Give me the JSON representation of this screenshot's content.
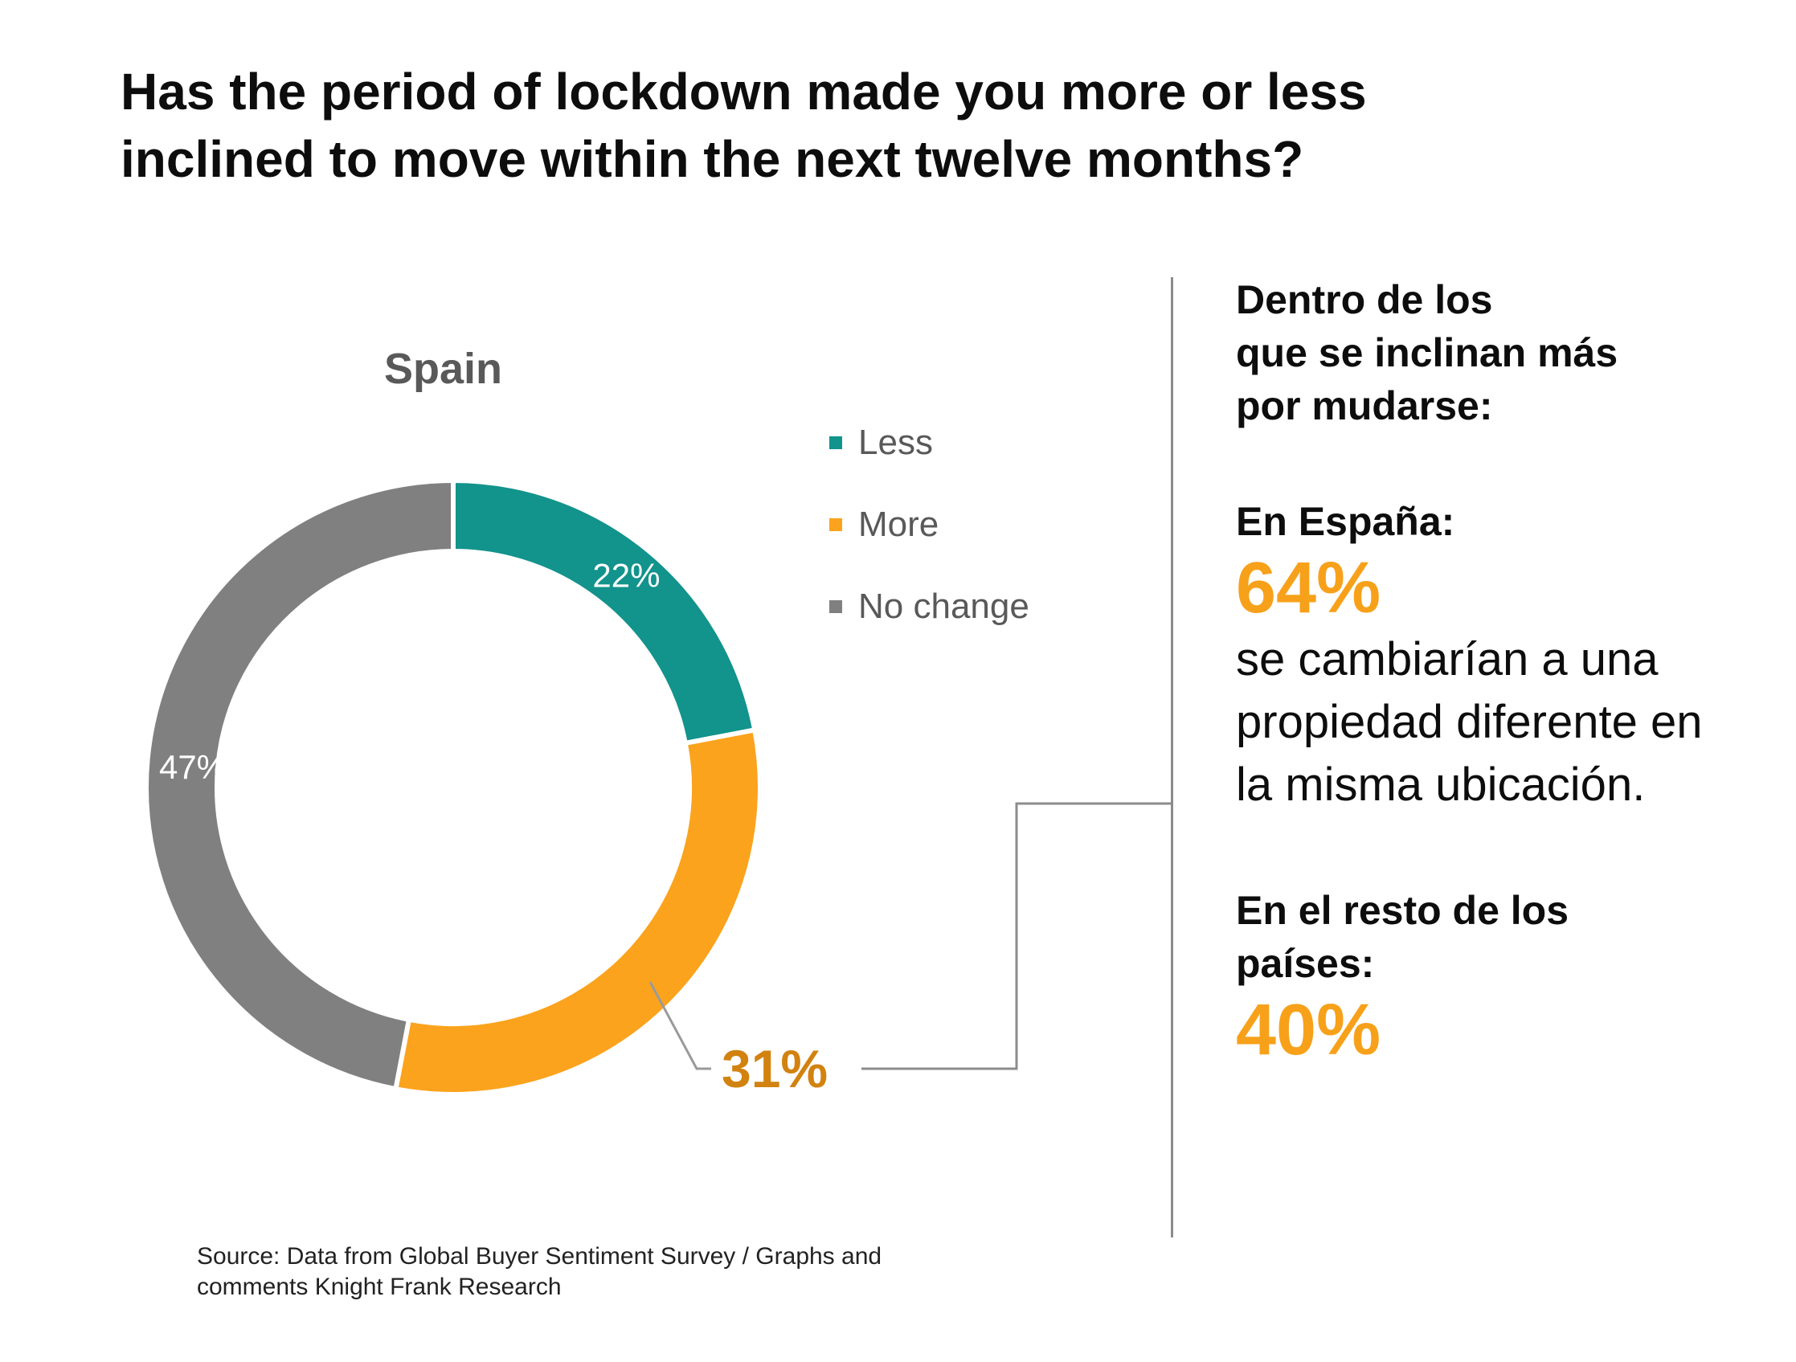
{
  "headline": "Has the period of lockdown made you more or less inclined to move within the next twelve months?",
  "chart_data": {
    "type": "pie",
    "title": "Spain",
    "categories": [
      "Less",
      "More",
      "No change"
    ],
    "values": [
      22,
      31,
      47
    ],
    "unit": "%",
    "colors": [
      "#12938c",
      "#fba31d",
      "#808080"
    ],
    "data_labels": [
      "22%",
      "31%",
      "47%"
    ],
    "callout_color": "#d2820f",
    "legend_placement": "right"
  },
  "sidebar": {
    "intro_lines": [
      "Dentro de los",
      "que se inclinan más",
      "por mudarse:"
    ],
    "spain_label": "En España:",
    "spain_value": "64%",
    "spain_text_lines": [
      "se cambiarían a una",
      "propiedad diferente en",
      "la misma ubicación."
    ],
    "rest_label_lines": [
      "En el resto de los",
      "países:"
    ],
    "rest_value": "40%"
  },
  "source_lines": [
    "Source: Data from Global Buyer Sentiment Survey / Graphs and",
    "comments Knight Frank Research"
  ]
}
